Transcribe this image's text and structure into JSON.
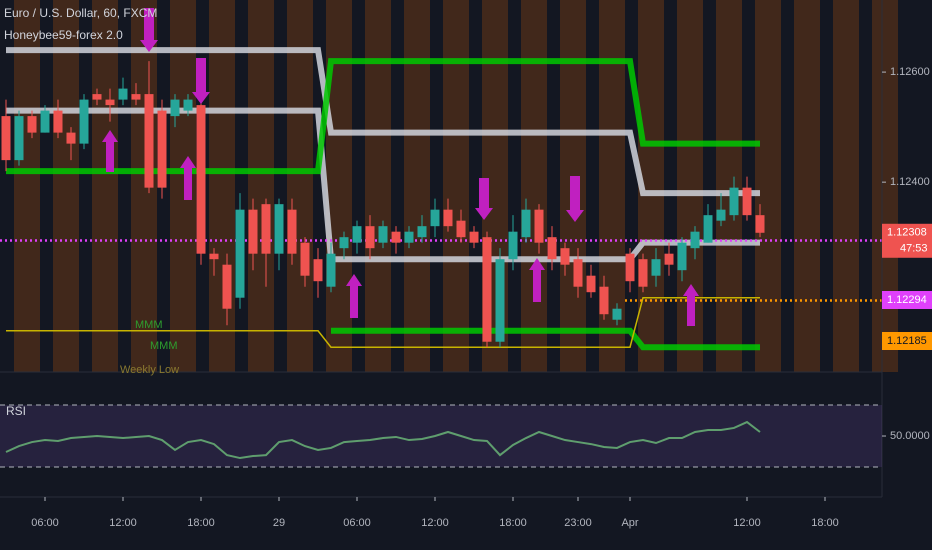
{
  "chart_data": {
    "type": "candlestick",
    "title": "Euro / U.S. Dollar, 60, FXCM",
    "subtitle": "Honeybee59-forex 2.0",
    "up_color": "#26a69a",
    "down_color": "#ef5350",
    "categories": [
      null,
      null,
      null,
      "06:00",
      null,
      null,
      null,
      null,
      null,
      "12:00",
      null,
      null,
      null,
      null,
      null,
      "18:00",
      null,
      null,
      null,
      null,
      null,
      "29",
      null,
      null,
      null,
      null,
      null,
      "06:00",
      null,
      null,
      null,
      null,
      null,
      "12:00",
      null,
      null,
      null,
      null,
      null,
      "18:00",
      null,
      null,
      null,
      null,
      "23:00",
      null,
      null,
      null,
      "Apr",
      null,
      null,
      null,
      null,
      null,
      null,
      null,
      null,
      "12:00",
      null,
      null,
      null,
      null,
      null,
      "18:00"
    ],
    "open": [
      1.1252,
      1.1244,
      1.1252,
      1.1249,
      1.1253,
      1.1249,
      1.1247,
      1.1256,
      1.1255,
      1.1255,
      1.1256,
      1.1256,
      1.1253,
      1.1252,
      1.1253,
      1.1254,
      1.1227,
      1.1225,
      1.1219,
      1.1235,
      1.1236,
      1.1227,
      1.1235,
      1.1229,
      1.1226,
      1.1221,
      1.1228,
      1.1229,
      1.1232,
      1.1229,
      1.1231,
      1.1229,
      1.123,
      1.1232,
      1.1235,
      1.1233,
      1.1231,
      1.123,
      1.1211,
      1.1226,
      1.123,
      1.1235,
      1.123,
      1.1228,
      1.1226,
      1.1223,
      1.1221,
      1.1215,
      1.1227,
      1.1226,
      1.1223,
      1.1227,
      1.1224,
      1.1228,
      1.1229,
      1.1233,
      1.1234,
      1.1239,
      1.1234,
      null,
      null,
      null,
      null,
      null
    ],
    "high": [
      1.1255,
      1.1253,
      1.1253,
      1.1254,
      1.1255,
      1.125,
      1.1256,
      1.1257,
      1.1257,
      1.1259,
      1.1258,
      1.1262,
      1.1255,
      1.1256,
      1.1256,
      1.1255,
      1.1228,
      1.1227,
      1.1238,
      1.1237,
      1.1237,
      1.1237,
      1.1237,
      1.123,
      1.1228,
      1.1229,
      1.1231,
      1.1233,
      1.1234,
      1.1233,
      1.1232,
      1.1232,
      1.1234,
      1.1237,
      1.1237,
      1.1235,
      1.1232,
      1.1231,
      1.1228,
      1.1234,
      1.1237,
      1.1236,
      1.1232,
      1.1229,
      1.1228,
      1.1225,
      1.1223,
      1.1218,
      1.1228,
      1.1227,
      1.1228,
      1.1229,
      1.123,
      1.1232,
      1.1236,
      1.1238,
      1.1241,
      1.1241,
      1.1236,
      null,
      null,
      null,
      null,
      null
    ],
    "low": [
      1.1242,
      1.1243,
      1.1248,
      1.1249,
      1.1248,
      1.1244,
      1.1246,
      1.1254,
      1.1251,
      1.1254,
      1.1254,
      1.1238,
      1.1237,
      1.125,
      1.1252,
      1.1225,
      1.1223,
      1.1214,
      1.1217,
      1.1224,
      1.1221,
      1.1224,
      1.1225,
      1.1221,
      1.1219,
      1.122,
      1.1226,
      1.1227,
      1.1226,
      1.1228,
      1.1227,
      1.1228,
      1.1229,
      1.123,
      1.1231,
      1.1229,
      1.1228,
      1.121,
      1.121,
      1.1224,
      1.1229,
      1.1227,
      1.1224,
      1.1223,
      1.1219,
      1.1219,
      1.1215,
      1.1214,
      1.122,
      1.122,
      1.1221,
      1.1223,
      1.1222,
      1.1226,
      1.1229,
      1.1232,
      1.1233,
      1.1233,
      1.123,
      null,
      null,
      null,
      null,
      null
    ],
    "close": [
      1.1244,
      1.1252,
      1.1249,
      1.1253,
      1.1249,
      1.1247,
      1.1255,
      1.1255,
      1.1254,
      1.1257,
      1.1255,
      1.1239,
      1.1239,
      1.1255,
      1.1255,
      1.1227,
      1.1226,
      1.1217,
      1.1235,
      1.1227,
      1.1227,
      1.1236,
      1.1227,
      1.1223,
      1.1222,
      1.1227,
      1.123,
      1.1232,
      1.1228,
      1.1232,
      1.1229,
      1.1231,
      1.1232,
      1.1235,
      1.1232,
      1.123,
      1.1229,
      1.1211,
      1.1226,
      1.1231,
      1.1235,
      1.1229,
      1.1226,
      1.1225,
      1.1221,
      1.122,
      1.1216,
      1.1217,
      1.1222,
      1.1221,
      1.1226,
      1.1225,
      1.1229,
      1.1231,
      1.1234,
      1.1235,
      1.1239,
      1.1234,
      1.12308,
      null,
      null,
      null,
      null,
      null
    ],
    "ylim": [
      1.12055,
      1.12731
    ],
    "yticks": [
      {
        "value": 1.126,
        "label": "1.12600"
      },
      {
        "value": 1.124,
        "label": "1.12400"
      }
    ],
    "levels": [
      {
        "color": "#d1d4dc",
        "width": 6,
        "values": [
          1.1264,
          1.1264,
          1.1264,
          1.1264,
          1.1264,
          1.1264,
          1.1264,
          1.1264,
          1.1264,
          1.1264,
          1.1264,
          1.1264,
          1.1264,
          1.1264,
          1.1264,
          1.1264,
          1.1264,
          1.1264,
          1.1264,
          1.1264,
          1.1264,
          1.1264,
          1.1264,
          1.1264,
          1.1264,
          1.1249,
          1.1249,
          1.1249,
          1.1249,
          1.1249,
          1.1249,
          1.1249,
          1.1249,
          1.1249,
          1.1249,
          1.1249,
          1.1249,
          1.1249,
          1.1249,
          1.1249,
          1.1249,
          1.1249,
          1.1249,
          1.1249,
          1.1249,
          1.1249,
          1.1249,
          1.1249,
          1.1249,
          1.1238,
          1.1238,
          1.1238,
          1.1238,
          1.1238,
          1.1238,
          1.1238,
          1.1238,
          1.1238,
          1.1238,
          null,
          null,
          null,
          null,
          null
        ]
      },
      {
        "color": "#d1d4dc",
        "width": 6,
        "values": [
          1.1253,
          1.1253,
          1.1253,
          1.1253,
          1.1253,
          1.1253,
          1.1253,
          1.1253,
          1.1253,
          1.1253,
          1.1253,
          1.1253,
          1.1253,
          1.1253,
          1.1253,
          1.1253,
          1.1253,
          1.1253,
          1.1253,
          1.1253,
          1.1253,
          1.1253,
          1.1253,
          1.1253,
          1.1253,
          1.1226,
          1.1226,
          1.1226,
          1.1226,
          1.1226,
          1.1226,
          1.1226,
          1.1226,
          1.1226,
          1.1226,
          1.1226,
          1.1226,
          1.1226,
          1.1226,
          1.1226,
          1.1226,
          1.1226,
          1.1226,
          1.1226,
          1.1226,
          1.1226,
          1.1226,
          1.1226,
          1.1226,
          1.1229,
          1.1229,
          1.1229,
          1.1229,
          1.1229,
          1.1229,
          1.1229,
          1.1229,
          1.1229,
          1.1229,
          null,
          null,
          null,
          null,
          null
        ]
      },
      {
        "color": "#00c800",
        "width": 6,
        "values": [
          1.1242,
          1.1242,
          1.1242,
          1.1242,
          1.1242,
          1.1242,
          1.1242,
          1.1242,
          1.1242,
          1.1242,
          1.1242,
          1.1242,
          1.1242,
          1.1242,
          1.1242,
          1.1242,
          1.1242,
          1.1242,
          1.1242,
          1.1242,
          1.1242,
          1.1242,
          1.1242,
          1.1242,
          1.1242,
          1.1262,
          1.1262,
          1.1262,
          1.1262,
          1.1262,
          1.1262,
          1.1262,
          1.1262,
          1.1262,
          1.1262,
          1.1262,
          1.1262,
          1.1262,
          1.1262,
          1.1262,
          1.1262,
          1.1262,
          1.1262,
          1.1262,
          1.1262,
          1.1262,
          1.1262,
          1.1262,
          1.1262,
          1.1247,
          1.1247,
          1.1247,
          1.1247,
          1.1247,
          1.1247,
          1.1247,
          1.1247,
          1.1247,
          1.1247,
          null,
          null,
          null,
          null,
          null
        ]
      },
      {
        "color": "#00c800",
        "width": 6,
        "values": [
          null,
          null,
          null,
          null,
          null,
          null,
          null,
          null,
          null,
          null,
          null,
          null,
          null,
          null,
          null,
          null,
          null,
          null,
          null,
          null,
          null,
          null,
          null,
          null,
          null,
          1.1213,
          1.1213,
          1.1213,
          1.1213,
          1.1213,
          1.1213,
          1.1213,
          1.1213,
          1.1213,
          1.1213,
          1.1213,
          1.1213,
          1.1213,
          1.1213,
          1.1213,
          1.1213,
          1.1213,
          1.1213,
          1.1213,
          1.1213,
          1.1213,
          1.1213,
          1.1213,
          1.1213,
          1.121,
          1.121,
          1.121,
          1.121,
          1.121,
          1.121,
          1.121,
          1.121,
          1.121,
          1.121,
          null,
          null,
          null,
          null,
          null
        ]
      },
      {
        "color": "#c8b400",
        "width": 1.5,
        "values": [
          1.1213,
          1.1213,
          1.1213,
          1.1213,
          1.1213,
          1.1213,
          1.1213,
          1.1213,
          1.1213,
          1.1213,
          1.1213,
          1.1213,
          1.1213,
          1.1213,
          1.1213,
          1.1213,
          1.1213,
          1.1213,
          1.1213,
          1.1213,
          1.1213,
          1.1213,
          1.1213,
          1.1213,
          1.1213,
          1.121,
          1.121,
          1.121,
          1.121,
          1.121,
          1.121,
          1.121,
          1.121,
          1.121,
          1.121,
          1.121,
          1.121,
          1.121,
          1.121,
          1.121,
          1.121,
          1.121,
          1.121,
          1.121,
          1.121,
          1.121,
          1.121,
          1.121,
          1.121,
          1.1219,
          1.1219,
          1.1219,
          1.1219,
          1.1219,
          1.1219,
          1.1219,
          1.1219,
          1.1219,
          1.1219,
          null,
          null,
          null,
          null,
          null
        ]
      }
    ],
    "price_lines": [
      {
        "value": 1.12294,
        "color": "#e040fb"
      },
      {
        "value": 1.12185,
        "color": "#ff9800"
      }
    ],
    "countdown": "47:53",
    "annotations": [
      "MMM",
      "MMM",
      "Weekly Low"
    ],
    "rsi": {
      "title": "RSI",
      "color": "#5f9e6e",
      "values": [
        39.7,
        43.5,
        46.1,
        47.4,
        46.8,
        48.7,
        49.4,
        50,
        49.4,
        48.7,
        49.4,
        50,
        47.4,
        41.0,
        46.1,
        47.4,
        44.8,
        37.7,
        35.8,
        37.1,
        37.7,
        46.1,
        47.4,
        43.5,
        41.0,
        42.3,
        46.1,
        46.8,
        47.4,
        48.7,
        49.4,
        47.4,
        48.1,
        50,
        52.6,
        50,
        47.4,
        46.8,
        37.7,
        44.2,
        48.7,
        52.6,
        50,
        47.4,
        46.1,
        44.8,
        42.9,
        42.3,
        46.1,
        47.4,
        45.5,
        48.7,
        48.7,
        52.6,
        53.9,
        53.9,
        55.2,
        59.0,
        52.6,
        null,
        null,
        null,
        null,
        null
      ],
      "ylim": [
        15.2,
        87.4
      ],
      "yticks": [
        {
          "value": 50,
          "label": "50.0000"
        }
      ],
      "bands": [
        70,
        30
      ]
    }
  }
}
